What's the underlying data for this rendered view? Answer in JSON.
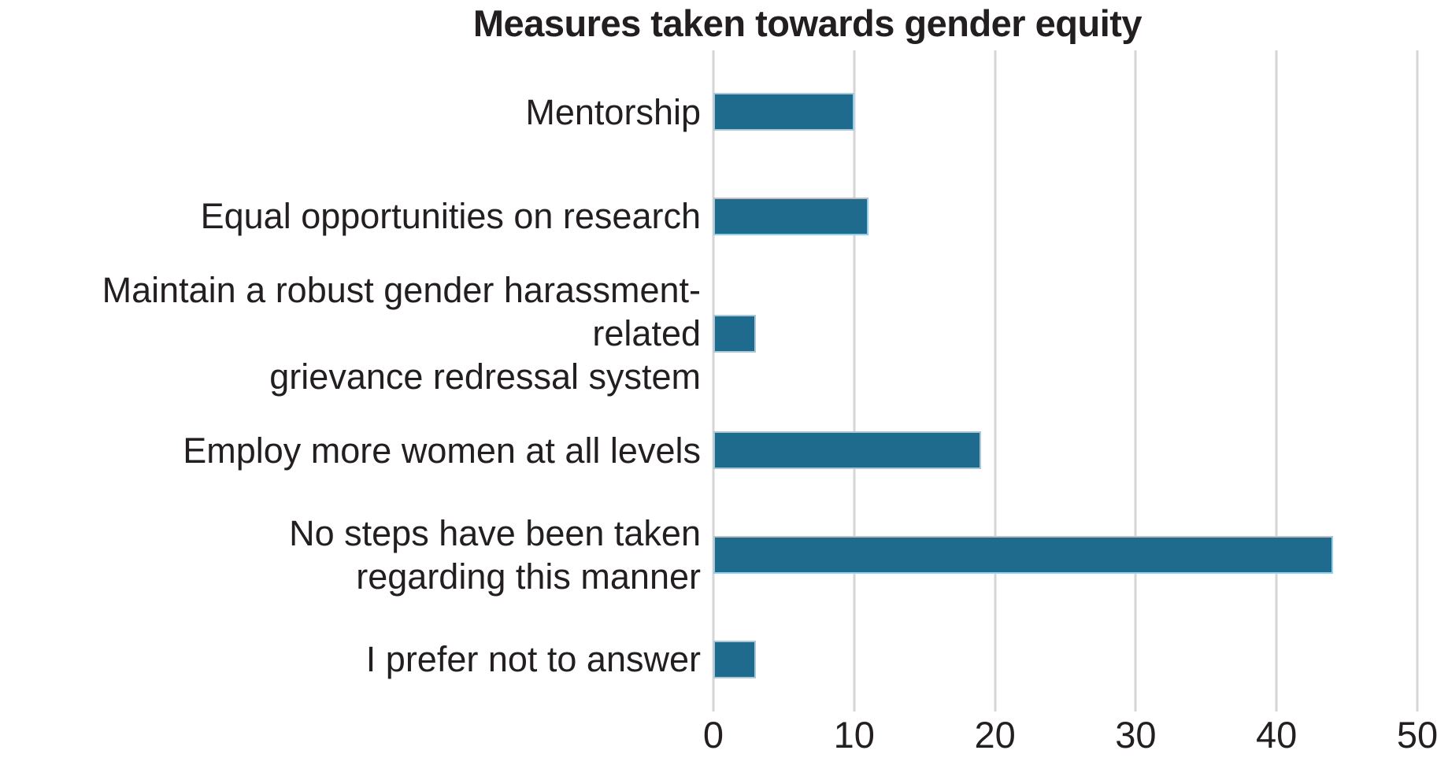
{
  "title": "Measures taken towards gender equity",
  "colors": {
    "bar_fill": "#1f6b8e",
    "bar_border": "#a9c7d6",
    "gridline": "#d6d6d6",
    "text": "#231f20",
    "background": "#ffffff"
  },
  "chart_data": {
    "type": "bar",
    "orientation": "horizontal",
    "title": "Measures taken towards gender equity",
    "categories": [
      "Mentorship",
      "Equal opportunities on research",
      "Maintain a robust gender harassment-related grievance redressal system",
      "Employ more women at all levels",
      "No steps have been taken regarding this manner",
      "I prefer not to answer"
    ],
    "display_labels": [
      "Mentorship",
      "Equal opportunities on research",
      "Maintain a robust gender harassment-related\ngrievance redressal system",
      "Employ more women at all levels",
      "No steps have been taken\nregarding this manner",
      "I prefer not to answer"
    ],
    "values": [
      10,
      11,
      3,
      19,
      44,
      3
    ],
    "xlabel": "",
    "ylabel": "",
    "xlim": [
      0,
      50
    ],
    "x_ticks": [
      "0",
      "10",
      "20",
      "30",
      "40",
      "50"
    ],
    "grid": "vertical-gridlines-only",
    "legend": "none"
  }
}
